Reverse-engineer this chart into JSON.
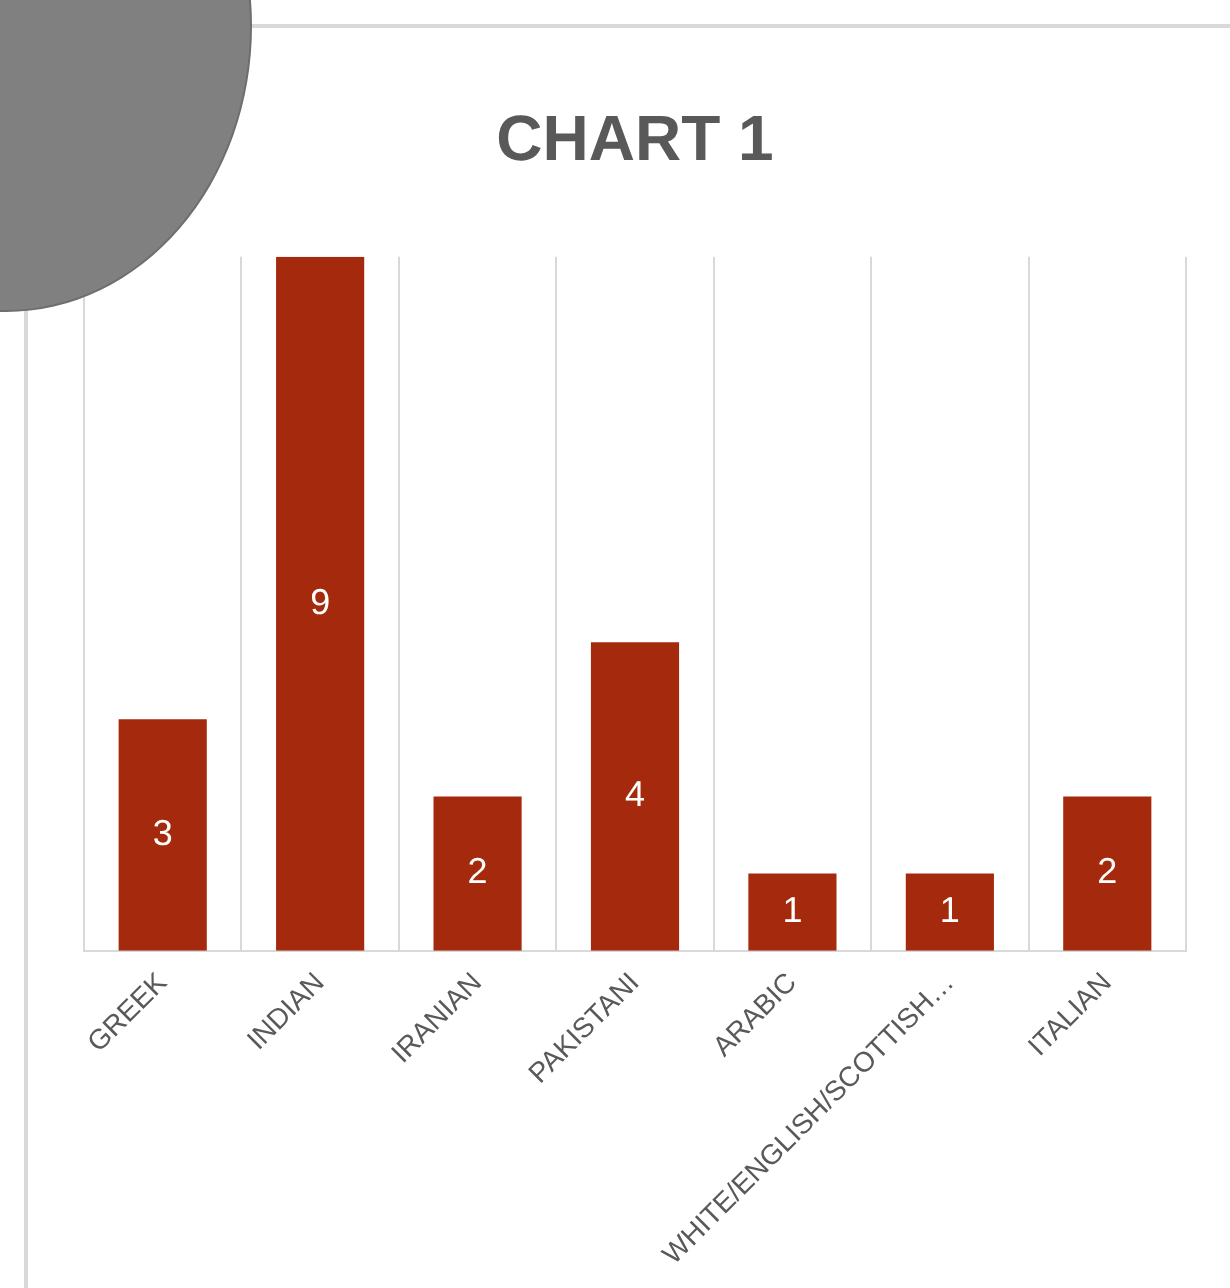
{
  "chart_data": {
    "type": "bar",
    "title": "CHART 1",
    "categories": [
      "GREEK",
      "INDIAN",
      "IRANIAN",
      "PAKISTANI",
      "ARABIC",
      "WHITE/ENGLISH/SCOTTISH…",
      "ITALIAN"
    ],
    "values": [
      3,
      9,
      2,
      4,
      1,
      1,
      2
    ],
    "color": "#a52a0d",
    "data_labels": true,
    "grid": "x",
    "tick_labels": "x",
    "legend": false
  }
}
